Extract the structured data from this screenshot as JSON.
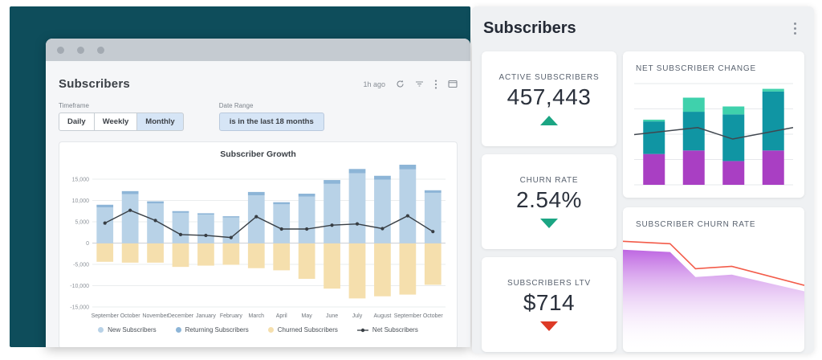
{
  "window": {
    "title": "Subscribers",
    "toolbar": {
      "updated": "1h ago",
      "icons": [
        "refresh-icon",
        "filter-icon",
        "kebab-menu-icon",
        "window-icon"
      ]
    },
    "timeframe": {
      "label": "Timeframe",
      "options": [
        "Daily",
        "Weekly",
        "Monthly"
      ],
      "selected": "Monthly"
    },
    "date_range": {
      "label": "Date Range",
      "value": "is in the last 18 months"
    }
  },
  "chart_data": [
    {
      "type": "bar",
      "subtype": "stacked-bar-with-line",
      "title": "Subscriber Growth",
      "categories": [
        "September",
        "October",
        "November",
        "December",
        "January",
        "February",
        "March",
        "April",
        "May",
        "June",
        "July",
        "August",
        "September",
        "October"
      ],
      "series": [
        {
          "name": "New Subscribers",
          "kind": "bar",
          "color": "#b8d2e7",
          "values": [
            8400,
            11500,
            9300,
            7100,
            6700,
            6000,
            11200,
            9100,
            10900,
            13900,
            16400,
            14900,
            17300,
            11800
          ]
        },
        {
          "name": "Returning Subscribers",
          "kind": "bar",
          "color": "#8db5d7",
          "values": [
            600,
            700,
            500,
            400,
            300,
            300,
            800,
            500,
            700,
            900,
            1000,
            900,
            1100,
            600
          ]
        },
        {
          "name": "Churned Subscribers",
          "kind": "bar",
          "color": "#f5dfad",
          "values": [
            -4300,
            -4500,
            -4500,
            -5500,
            -5200,
            -5000,
            -5800,
            -6300,
            -8300,
            -10600,
            -12900,
            -12400,
            -12000,
            -9700
          ]
        },
        {
          "name": "Net Subscribers",
          "kind": "line",
          "color": "#383e44",
          "values": [
            4700,
            7700,
            5300,
            2000,
            1800,
            1300,
            6200,
            3300,
            3300,
            4200,
            4500,
            3400,
            6400,
            2700
          ]
        }
      ],
      "ylim": [
        -15000,
        15000
      ],
      "ytick_step": 5000,
      "grid": true,
      "legend_position": "bottom"
    },
    {
      "type": "bar",
      "subtype": "stacked-bar-with-line",
      "title": "NET SUBSCRIBER CHANGE",
      "categories": [
        "",
        "",
        "",
        ""
      ],
      "series": [
        {
          "name": "segment-bottom",
          "kind": "bar",
          "color": "#a93fc3",
          "values": [
            35,
            39,
            27,
            39
          ]
        },
        {
          "name": "segment-middle",
          "kind": "bar",
          "color": "#1095a3",
          "values": [
            37,
            44,
            53,
            67
          ]
        },
        {
          "name": "segment-top",
          "kind": "bar",
          "color": "#3fd1ac",
          "values": [
            2,
            16,
            9,
            3
          ]
        },
        {
          "name": "trend-line",
          "kind": "line",
          "color": "#40474f",
          "values": [
            57,
            65,
            52,
            65
          ],
          "x_percent": [
            0,
            40,
            62,
            100
          ]
        }
      ],
      "ylim": [
        0,
        115
      ],
      "gridline_count": 5,
      "legend_position": "none"
    },
    {
      "type": "area",
      "title": "SUBSCRIBER CHURN RATE",
      "x_percent": [
        0,
        26,
        40,
        60,
        100
      ],
      "line_values": [
        93,
        91,
        70,
        72,
        56
      ],
      "area_values": [
        86,
        84,
        63,
        65,
        51
      ],
      "ylim": [
        0,
        100
      ],
      "line_color": "#f35c4a",
      "area_color_top": "#bb5fe0",
      "area_color_bottom": "#ffffff",
      "legend_position": "none"
    }
  ],
  "panel": {
    "title": "Subscribers",
    "cards": [
      {
        "label": "ACTIVE SUBSCRIBERS",
        "value": "457,443",
        "trend": "up",
        "trend_color": "#1ba583"
      },
      {
        "label": "CHURN RATE",
        "value": "2.54%",
        "trend": "down",
        "trend_color": "#1ba583"
      },
      {
        "label": "SUBSCRIBERS LTV",
        "value": "$714",
        "trend": "down",
        "trend_color": "#dd3a26"
      }
    ]
  },
  "colors": {
    "backdrop_teal": "#0e4d5b",
    "titlebar_gray": "#c5cbd1",
    "selected_blue": "#d6e5f6",
    "panel_gray": "#eff1f3",
    "trend_up_green": "#1ba583",
    "trend_down_red": "#dd3a26"
  }
}
